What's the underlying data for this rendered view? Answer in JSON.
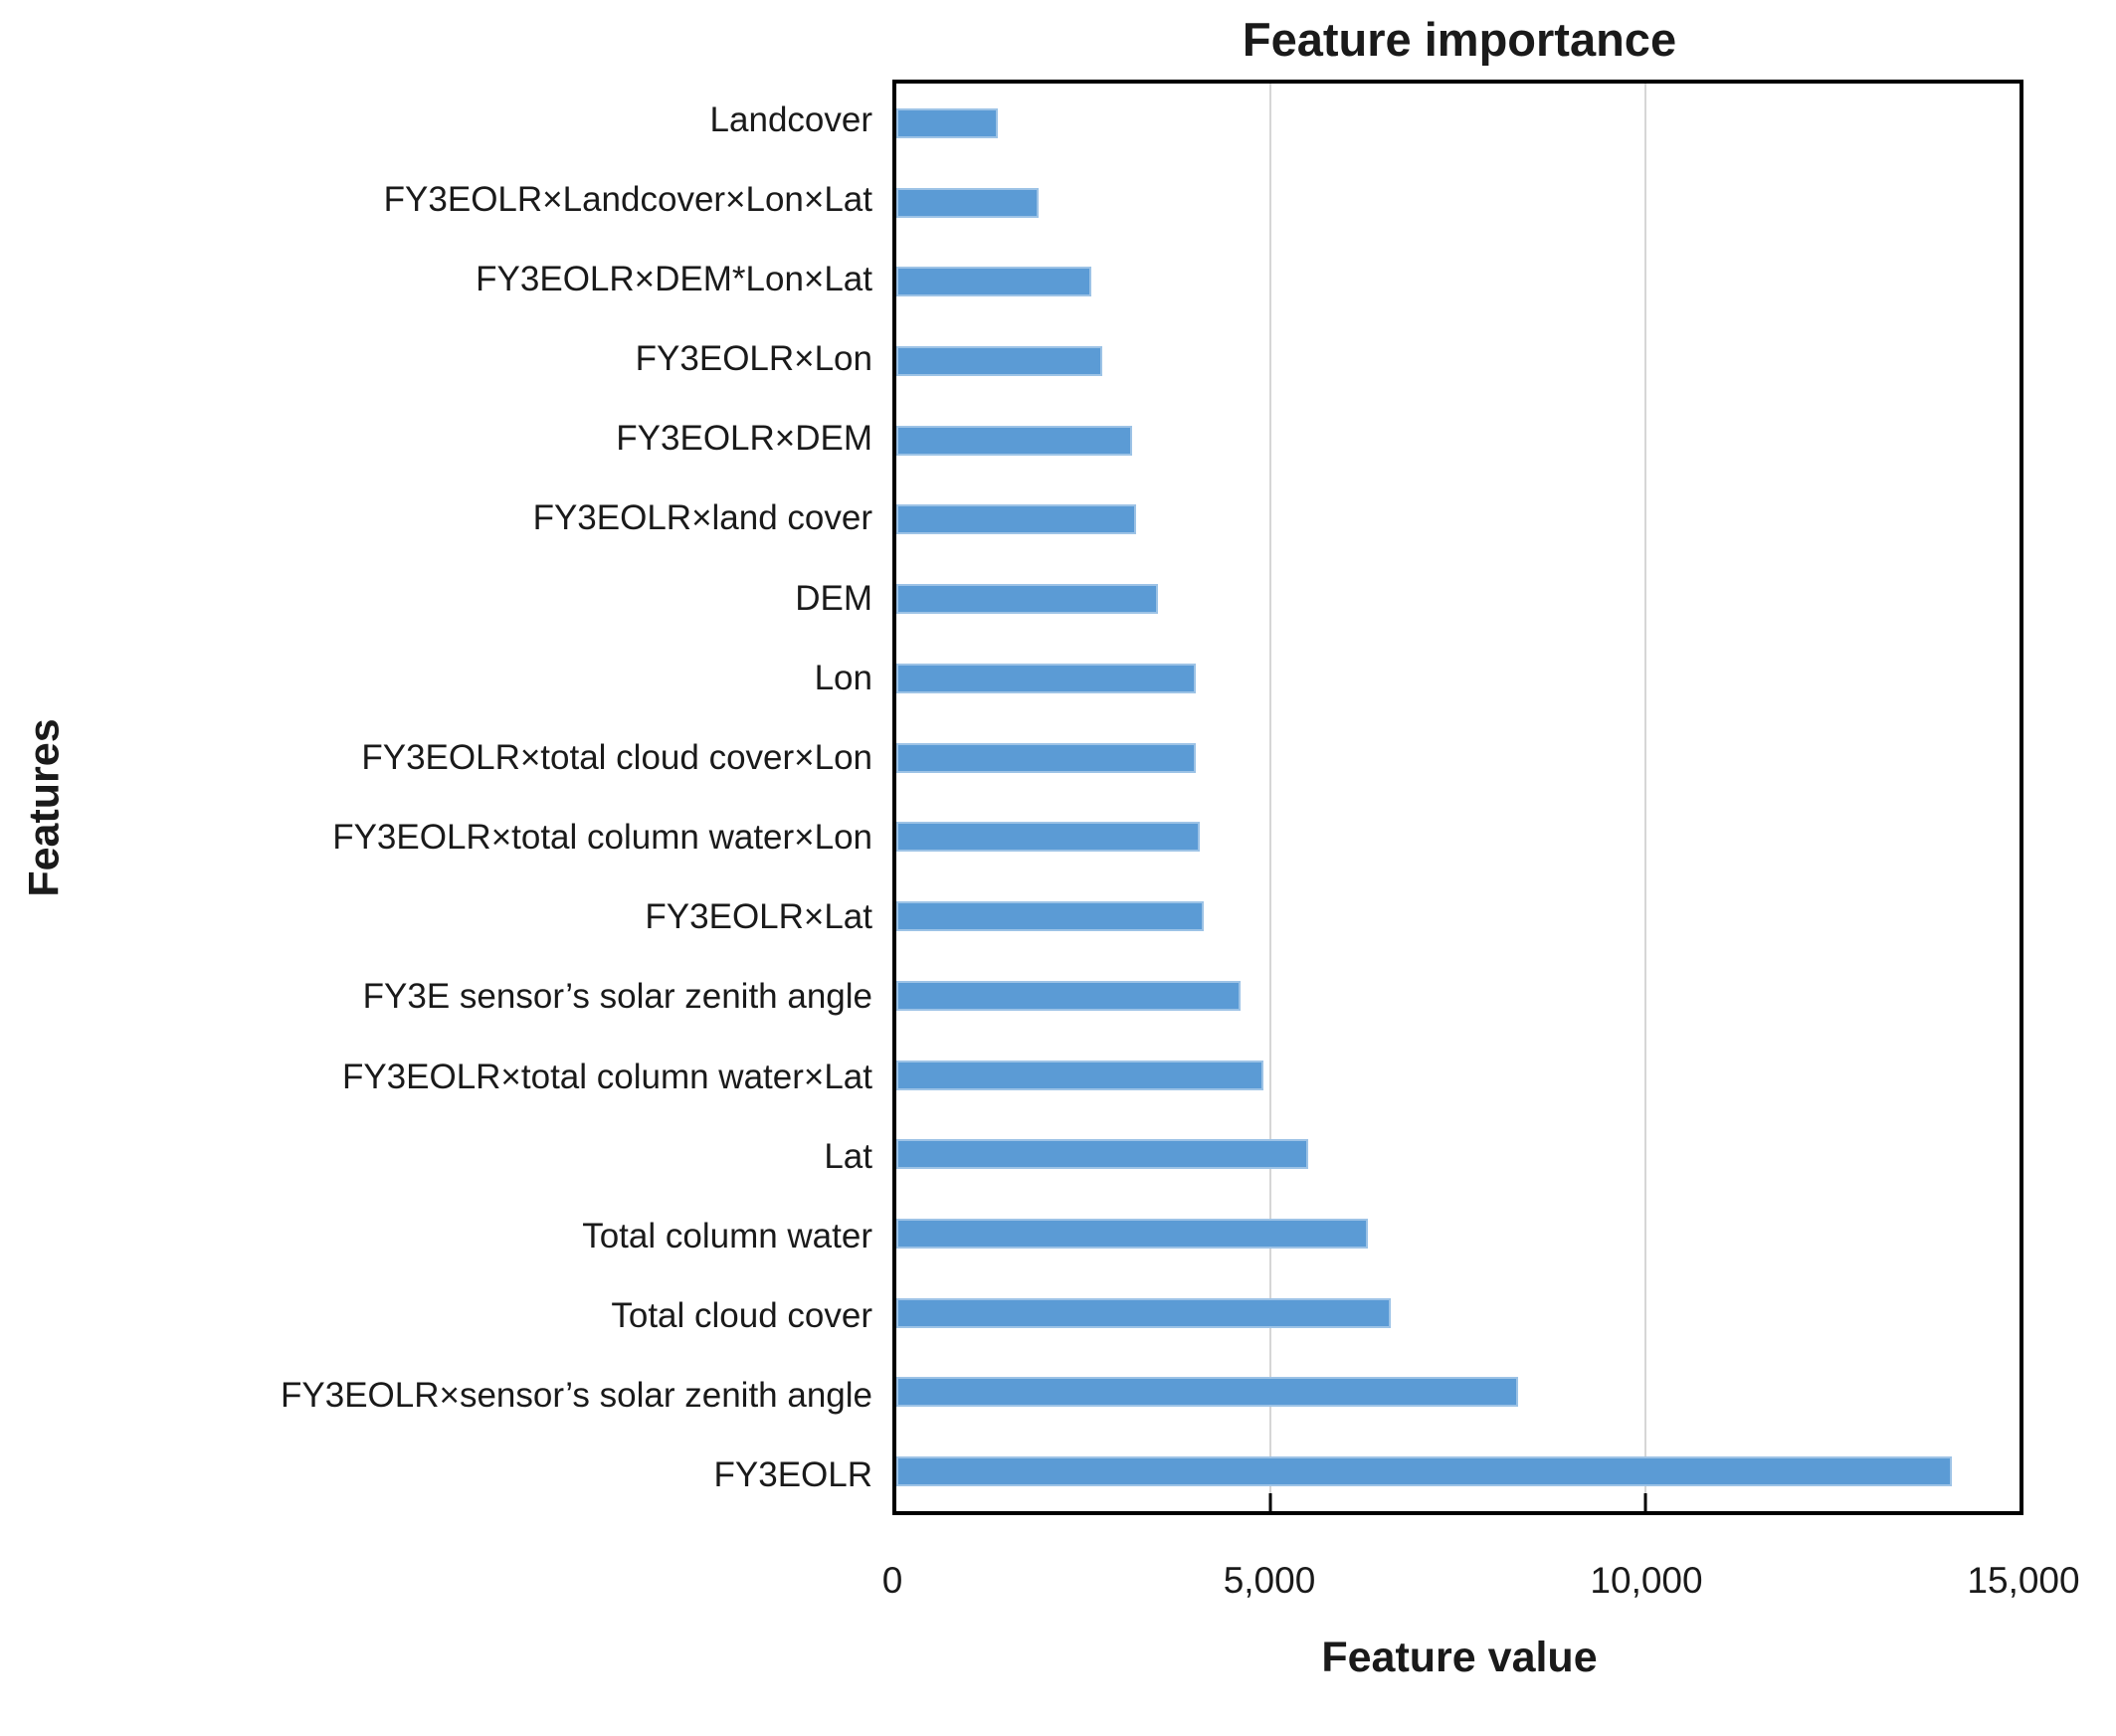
{
  "chart_data": {
    "type": "bar",
    "orientation": "horizontal",
    "title": "Feature importance",
    "xlabel": "Feature value",
    "ylabel": "Features",
    "categories": [
      "Landcover",
      "FY3EOLR×Landcover×Lon×Lat",
      "FY3EOLR×DEM*Lon×Lat",
      "FY3EOLR×Lon",
      "FY3EOLR×DEM",
      "FY3EOLR×land cover",
      "DEM",
      "Lon",
      "FY3EOLR×total cloud cover×Lon",
      "FY3EOLR×total column water×Lon",
      "FY3EOLR×Lat",
      "FY3E sensor’s solar zenith angle",
      "FY3EOLR×total column water×Lat",
      "Lat",
      "Total column water",
      "Total cloud cover",
      "FY3EOLR×sensor’s solar zenith angle",
      "FY3EOLR"
    ],
    "values": [
      1350,
      1900,
      2600,
      2750,
      3150,
      3200,
      3500,
      4000,
      4000,
      4050,
      4100,
      4600,
      4900,
      5500,
      6300,
      6600,
      8300,
      14100
    ],
    "xlim": [
      0,
      15000
    ],
    "xticks": [
      0,
      5000,
      10000,
      15000
    ],
    "xtick_labels": [
      "0",
      "5,000",
      "10,000",
      "15,000"
    ],
    "gridline_values": [
      5000,
      10000
    ],
    "grid": "vertical gridlines inside plot at 5,000 and 10,000; black plot border",
    "legend": "none",
    "bar_color": "#5b9bd5",
    "bar_edge_color": "#9dc3e6",
    "gridline_color": "#d6d6d6",
    "axis_color": "#000000"
  }
}
